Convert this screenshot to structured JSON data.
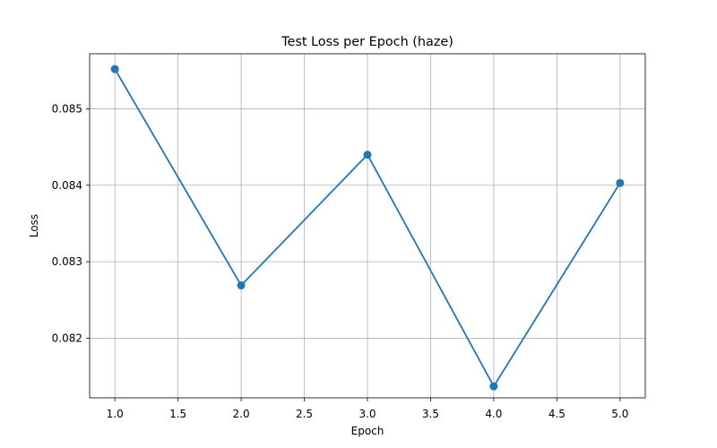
{
  "chart_data": {
    "type": "line",
    "title": "Test Loss per Epoch (haze)",
    "xlabel": "Epoch",
    "ylabel": "Loss",
    "x": [
      1.0,
      2.0,
      3.0,
      4.0,
      5.0
    ],
    "series": [
      {
        "values": [
          0.08552,
          0.08269,
          0.0844,
          0.08137,
          0.08403
        ],
        "color": "#1f77b4",
        "marker": "circle"
      }
    ],
    "xlim": [
      0.8,
      5.2
    ],
    "ylim": [
      0.08122,
      0.08572
    ],
    "xticks": [
      1.0,
      1.5,
      2.0,
      2.5,
      3.0,
      3.5,
      4.0,
      4.5,
      5.0
    ],
    "xtick_labels": [
      "1.0",
      "1.5",
      "2.0",
      "2.5",
      "3.0",
      "3.5",
      "4.0",
      "4.5",
      "5.0"
    ],
    "yticks": [
      0.082,
      0.083,
      0.084,
      0.085
    ],
    "ytick_labels": [
      "0.082",
      "0.083",
      "0.084",
      "0.085"
    ],
    "grid": true
  }
}
